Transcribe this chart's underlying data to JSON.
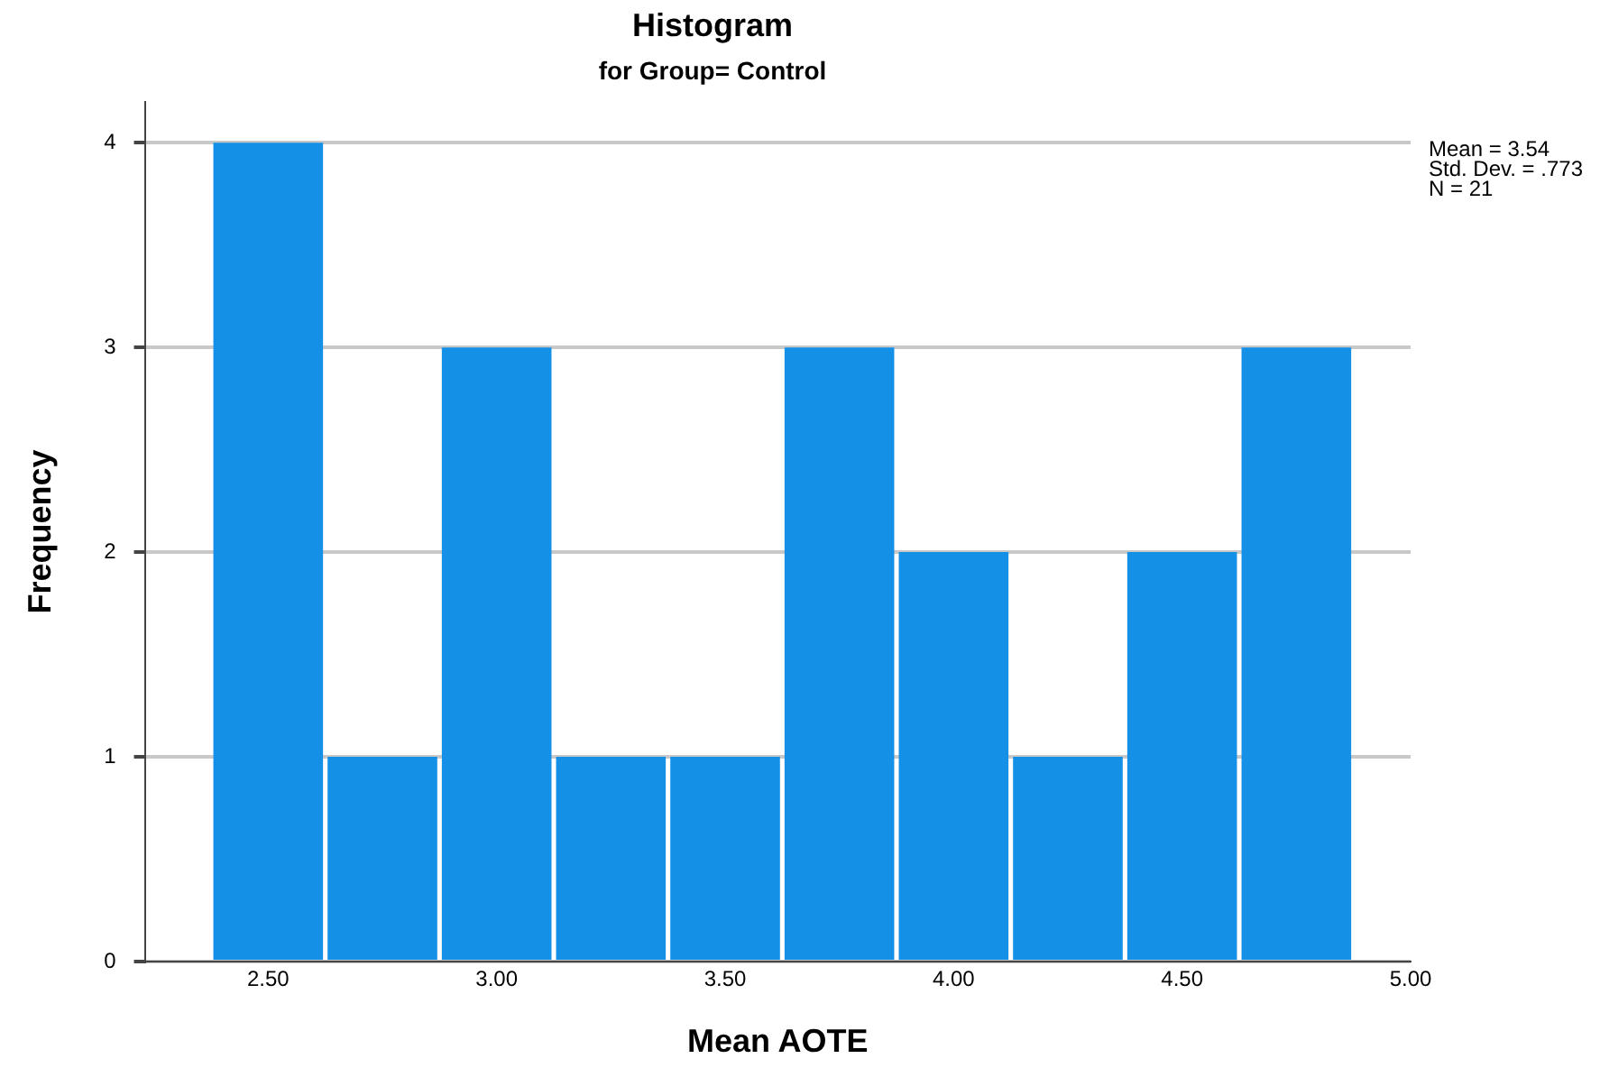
{
  "chart_data": {
    "type": "histogram",
    "title": "Histogram",
    "subtitle": "for Group= Control",
    "xlabel": "Mean AOTE",
    "ylabel": "Frequency",
    "bins": [
      2.375,
      2.625,
      2.875,
      3.125,
      3.375,
      3.625,
      3.875,
      4.125,
      4.375,
      4.625,
      4.875
    ],
    "values": [
      4,
      1,
      3,
      1,
      1,
      3,
      2,
      1,
      2,
      3
    ],
    "color": "#1490e6",
    "xlim": [
      2.23,
      5.0
    ],
    "xticks": [
      {
        "value": 2.5,
        "label": "2.50"
      },
      {
        "value": 3.0,
        "label": "3.00"
      },
      {
        "value": 3.5,
        "label": "3.50"
      },
      {
        "value": 4.0,
        "label": "4.00"
      },
      {
        "value": 4.5,
        "label": "4.50"
      },
      {
        "value": 5.0,
        "label": "5.00"
      }
    ],
    "ylim": [
      0,
      4.2
    ],
    "yticks": [
      0,
      1,
      2,
      3,
      4
    ],
    "grid": "y",
    "annotations": [
      "Mean = 3.54",
      "Std. Dev. = .773",
      "N = 21"
    ]
  }
}
